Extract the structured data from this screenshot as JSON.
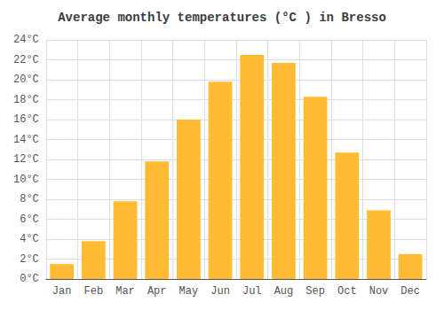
{
  "chart_data": {
    "type": "bar",
    "title": "Average monthly temperatures (°C ) in Bresso",
    "categories": [
      "Jan",
      "Feb",
      "Mar",
      "Apr",
      "May",
      "Jun",
      "Jul",
      "Aug",
      "Sep",
      "Oct",
      "Nov",
      "Dec"
    ],
    "values": [
      1.5,
      3.8,
      7.8,
      11.8,
      16.0,
      19.8,
      22.5,
      21.7,
      18.3,
      12.7,
      6.9,
      2.5
    ],
    "color": "#FFBB33",
    "ylim": [
      0,
      24
    ],
    "yticks": [
      {
        "value": 0,
        "label": "0°C"
      },
      {
        "value": 2,
        "label": "2°C"
      },
      {
        "value": 4,
        "label": "4°C"
      },
      {
        "value": 6,
        "label": "6°C"
      },
      {
        "value": 8,
        "label": "8°C"
      },
      {
        "value": 10,
        "label": "10°C"
      },
      {
        "value": 12,
        "label": "12°C"
      },
      {
        "value": 14,
        "label": "14°C"
      },
      {
        "value": 16,
        "label": "16°C"
      },
      {
        "value": 18,
        "label": "18°C"
      },
      {
        "value": 20,
        "label": "20°C"
      },
      {
        "value": 22,
        "label": "22°C"
      },
      {
        "value": 24,
        "label": "24°C"
      }
    ],
    "grid": true
  }
}
